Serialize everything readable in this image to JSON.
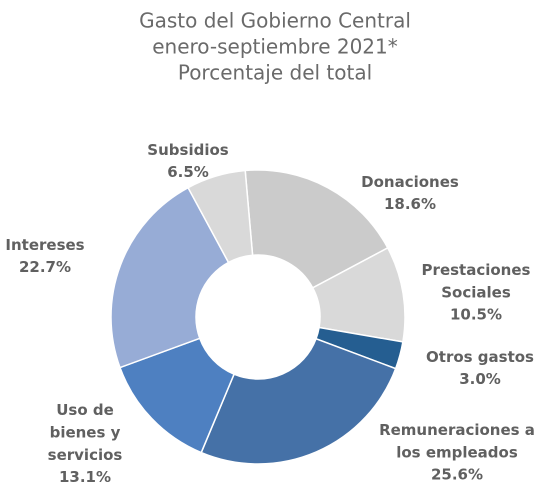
{
  "chart_data": {
    "type": "donut",
    "title": [
      "Gasto del Gobierno Central",
      "enero-septiembre 2021*",
      "Porcentaje del total"
    ],
    "categories": [
      "Donaciones",
      "Prestaciones Sociales",
      "Otros gastos",
      "Remuneraciones a los empleados",
      "Uso de bienes y servicios",
      "Intereses",
      "Subsidios"
    ],
    "values": [
      18.6,
      10.5,
      3.0,
      25.6,
      13.1,
      22.7,
      6.5
    ],
    "value_labels": [
      "18.6%",
      "10.5%",
      "3.0%",
      "25.6%",
      "13.1%",
      "22.7%",
      "6.5%"
    ],
    "colors": [
      "#cbcbcb",
      "#d9d9d9",
      "#255e91",
      "#4571a7",
      "#4e80c1",
      "#97acd6",
      "#d9d9d9"
    ]
  }
}
